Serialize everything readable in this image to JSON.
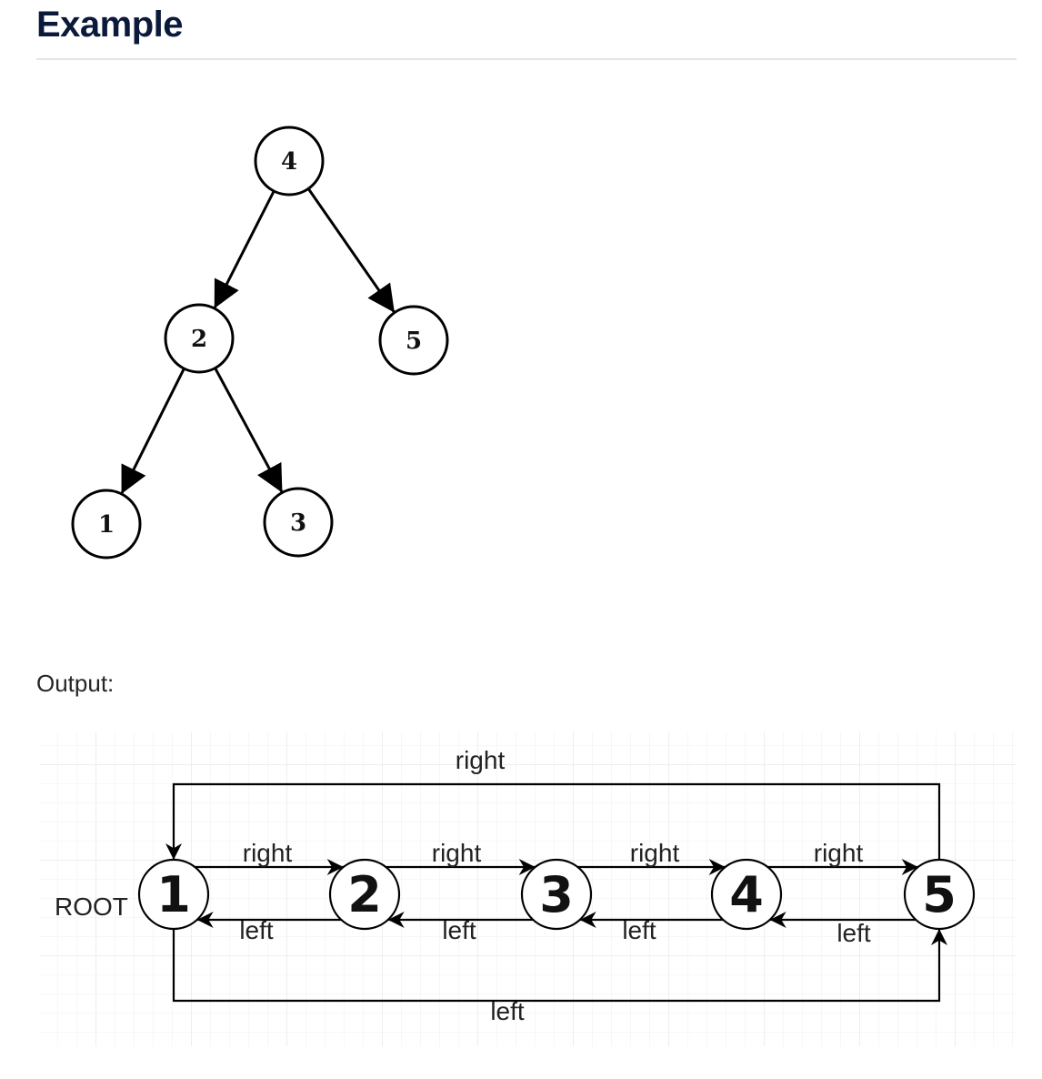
{
  "heading": "Example",
  "output_label": "Output:",
  "tree": {
    "nodes": [
      {
        "id": "4",
        "label": "4"
      },
      {
        "id": "2",
        "label": "2"
      },
      {
        "id": "5",
        "label": "5"
      },
      {
        "id": "1",
        "label": "1"
      },
      {
        "id": "3",
        "label": "3"
      }
    ],
    "edges": [
      {
        "from": "4",
        "to": "2"
      },
      {
        "from": "4",
        "to": "5"
      },
      {
        "from": "2",
        "to": "1"
      },
      {
        "from": "2",
        "to": "3"
      }
    ]
  },
  "list": {
    "root_label": "ROOT",
    "nodes": [
      "1",
      "2",
      "3",
      "4",
      "5"
    ],
    "right_label": "right",
    "left_label": "left"
  }
}
